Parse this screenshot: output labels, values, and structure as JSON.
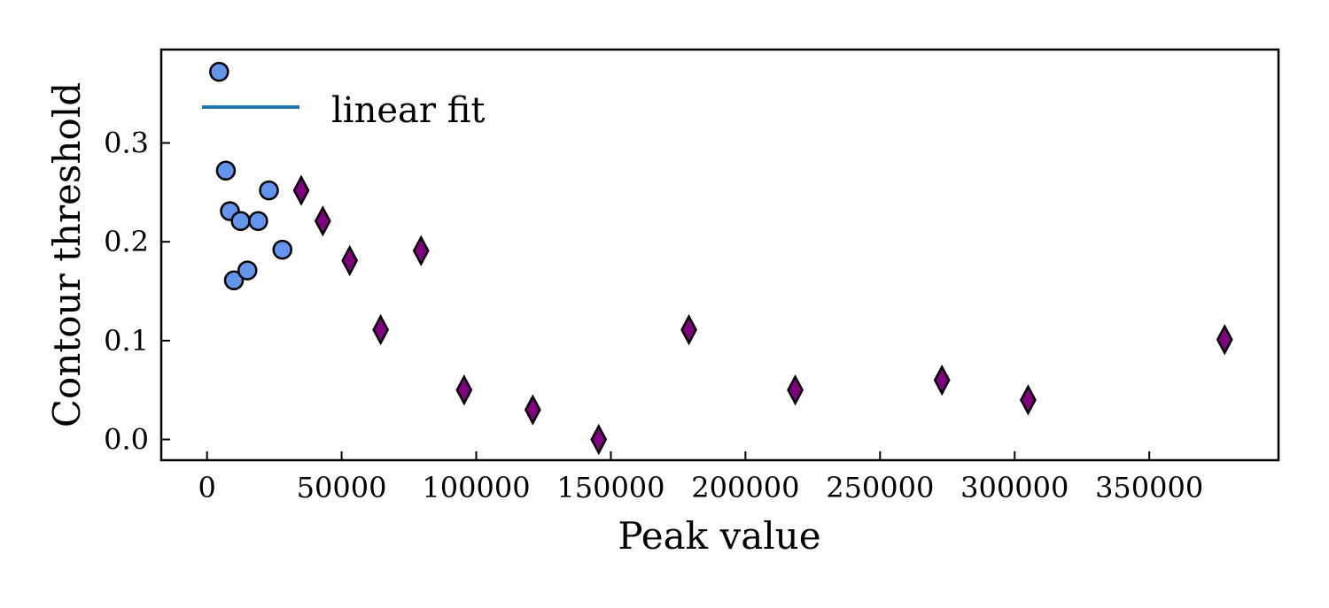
{
  "chart_data": {
    "type": "scatter",
    "title": "",
    "xlabel": "Peak value",
    "ylabel": "Contour threshold",
    "xlim": [
      -17000,
      398000
    ],
    "ylim": [
      -0.021,
      0.3945
    ],
    "x_ticks": [
      0,
      50000,
      100000,
      150000,
      200000,
      250000,
      300000,
      350000
    ],
    "x_tick_labels": [
      "0",
      "50000",
      "100000",
      "150000",
      "200000",
      "250000",
      "300000",
      "350000"
    ],
    "y_ticks": [
      0.0,
      0.1,
      0.2,
      0.3
    ],
    "y_tick_labels": [
      "0.0",
      "0.1",
      "0.2",
      "0.3"
    ],
    "grid": false,
    "legend": {
      "placement": "top-left",
      "entries": [
        {
          "label": "linear fit",
          "marker": "line",
          "color": "#1f77b4"
        }
      ]
    },
    "series": [
      {
        "marker": "circle",
        "color": "#6495ED",
        "edge_color": "#000000",
        "points": [
          {
            "x": 4500,
            "y": 0.372
          },
          {
            "x": 7000,
            "y": 0.272
          },
          {
            "x": 8500,
            "y": 0.231
          },
          {
            "x": 10000,
            "y": 0.161
          },
          {
            "x": 12500,
            "y": 0.221
          },
          {
            "x": 15000,
            "y": 0.171
          },
          {
            "x": 19000,
            "y": 0.221
          },
          {
            "x": 23000,
            "y": 0.252
          },
          {
            "x": 28000,
            "y": 0.192
          }
        ]
      },
      {
        "marker": "diamond",
        "color": "#800080",
        "edge_color": "#000000",
        "points": [
          {
            "x": 35000,
            "y": 0.252
          },
          {
            "x": 43000,
            "y": 0.221
          },
          {
            "x": 53000,
            "y": 0.181
          },
          {
            "x": 64500,
            "y": 0.111
          },
          {
            "x": 79500,
            "y": 0.191
          },
          {
            "x": 95500,
            "y": 0.05
          },
          {
            "x": 121000,
            "y": 0.03
          },
          {
            "x": 145500,
            "y": 0.0
          },
          {
            "x": 179000,
            "y": 0.111
          },
          {
            "x": 218500,
            "y": 0.05
          },
          {
            "x": 273000,
            "y": 0.06
          },
          {
            "x": 305000,
            "y": 0.04
          },
          {
            "x": 378000,
            "y": 0.101
          }
        ]
      }
    ]
  }
}
